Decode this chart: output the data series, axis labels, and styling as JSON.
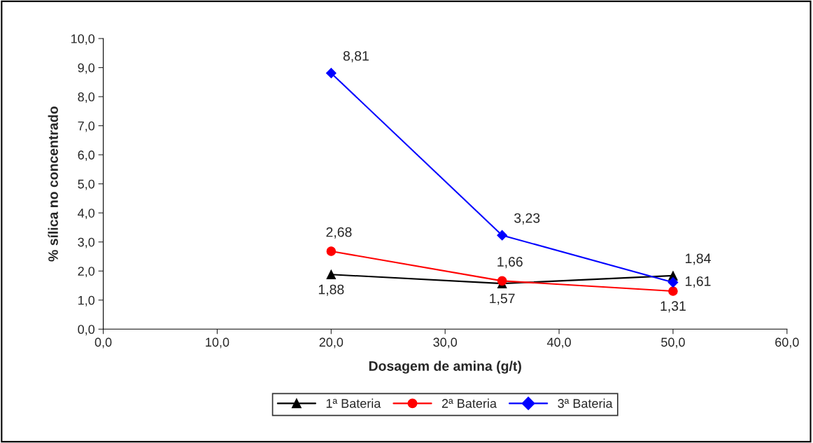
{
  "chart_data": {
    "type": "line",
    "xlabel": "Dosagem de amina (g/t)",
    "ylabel": "% sílica no concentrado",
    "x": [
      20,
      35,
      50
    ],
    "series": [
      {
        "name": "1ª Bateria",
        "color": "#000000",
        "marker": "triangle",
        "values": [
          1.88,
          1.57,
          1.84
        ],
        "value_labels": [
          "1,88",
          "1,57",
          "1,84"
        ]
      },
      {
        "name": "2ª Bateria",
        "color": "#ff0000",
        "marker": "circle",
        "values": [
          2.68,
          1.66,
          1.31
        ],
        "value_labels": [
          "2,68",
          "1,66",
          "1,31"
        ]
      },
      {
        "name": "3ª Bateria",
        "color": "#0000ff",
        "marker": "diamond",
        "values": [
          8.81,
          3.23,
          1.61
        ],
        "value_labels": [
          "8,81",
          "3,23",
          "1,61"
        ]
      }
    ],
    "xlim": [
      0,
      60
    ],
    "xticks": [
      {
        "value": 0,
        "label": "0,0"
      },
      {
        "value": 10,
        "label": "10,0"
      },
      {
        "value": 20,
        "label": "20,0"
      },
      {
        "value": 30,
        "label": "30,0"
      },
      {
        "value": 40,
        "label": "40,0"
      },
      {
        "value": 50,
        "label": "50,0"
      },
      {
        "value": 60,
        "label": "60,0"
      }
    ],
    "ylim": [
      0,
      10
    ],
    "yticks": [
      {
        "value": 0,
        "label": "0,0"
      },
      {
        "value": 1,
        "label": "1,0"
      },
      {
        "value": 2,
        "label": "2,0"
      },
      {
        "value": 3,
        "label": "3,0"
      },
      {
        "value": 4,
        "label": "4,0"
      },
      {
        "value": 5,
        "label": "5,0"
      },
      {
        "value": 6,
        "label": "6,0"
      },
      {
        "value": 7,
        "label": "7,0"
      },
      {
        "value": 8,
        "label": "8,0"
      },
      {
        "value": 9,
        "label": "9,0"
      },
      {
        "value": 10,
        "label": "10,0"
      }
    ],
    "grid": false,
    "legend": "bottom",
    "line_style": "solid"
  }
}
